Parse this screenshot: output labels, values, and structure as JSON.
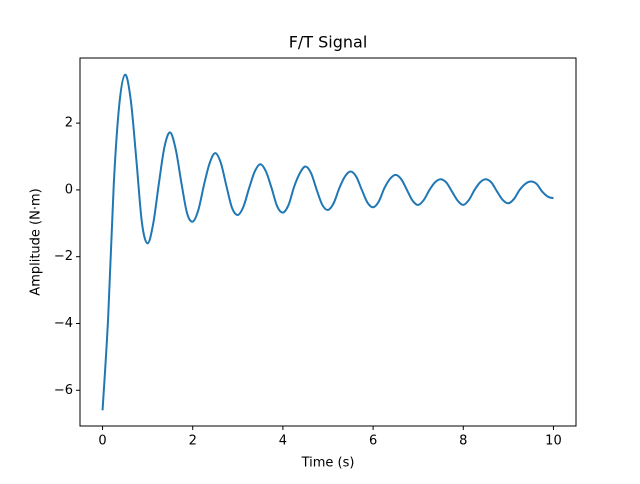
{
  "chart_data": {
    "type": "line",
    "title": "F/T Signal",
    "x_label": "Time (s)",
    "y_label": "Amplitude (N·m)",
    "x": [
      0,
      0.125,
      0.25,
      0.375,
      0.5,
      0.625,
      0.75,
      0.875,
      1,
      1.125,
      1.25,
      1.375,
      1.5,
      1.625,
      1.75,
      1.875,
      2,
      2.125,
      2.25,
      2.375,
      2.5,
      2.625,
      2.75,
      2.875,
      3,
      3.125,
      3.25,
      3.375,
      3.5,
      3.625,
      3.75,
      3.875,
      4,
      4.125,
      4.25,
      4.375,
      4.5,
      4.625,
      4.75,
      4.875,
      5,
      5.125,
      5.25,
      5.375,
      5.5,
      5.625,
      5.75,
      5.875,
      6,
      6.125,
      6.25,
      6.375,
      6.5,
      6.625,
      6.75,
      6.875,
      7,
      7.125,
      7.25,
      7.375,
      7.5,
      7.625,
      7.75,
      7.875,
      8,
      8.125,
      8.25,
      8.375,
      8.5,
      8.625,
      8.75,
      8.875,
      9,
      9.125,
      9.25,
      9.375,
      9.5,
      9.625,
      9.75,
      9.875,
      10
    ],
    "series": [
      {
        "color": "#1f77b4",
        "values": [
          -6.6,
          -3.8,
          0.2,
          2.6,
          3.45,
          2.7,
          0.9,
          -1.0,
          -1.6,
          -1.0,
          0.2,
          1.3,
          1.72,
          1.2,
          0.2,
          -0.7,
          -0.95,
          -0.6,
          0.15,
          0.8,
          1.1,
          0.8,
          0.1,
          -0.55,
          -0.75,
          -0.5,
          0.05,
          0.55,
          0.77,
          0.55,
          0.05,
          -0.5,
          -0.68,
          -0.45,
          0.1,
          0.5,
          0.7,
          0.5,
          0.0,
          -0.45,
          -0.6,
          -0.4,
          0.05,
          0.4,
          0.55,
          0.4,
          0.0,
          -0.38,
          -0.52,
          -0.35,
          0.05,
          0.33,
          0.45,
          0.32,
          0.0,
          -0.32,
          -0.45,
          -0.3,
          0.0,
          0.23,
          0.32,
          0.22,
          -0.05,
          -0.32,
          -0.45,
          -0.3,
          0.0,
          0.23,
          0.32,
          0.22,
          -0.05,
          -0.3,
          -0.4,
          -0.27,
          0.0,
          0.18,
          0.25,
          0.18,
          -0.05,
          -0.2,
          -0.25
        ]
      }
    ],
    "xlim": [
      -0.5,
      10.5
    ],
    "ylim": [
      -7.07,
      3.95
    ],
    "xticks": [
      0,
      2,
      4,
      6,
      8,
      10
    ],
    "yticks": [
      {
        "value": -6,
        "label": "−6"
      },
      {
        "value": -4,
        "label": "−4"
      },
      {
        "value": -2,
        "label": "−2"
      },
      0,
      2
    ],
    "grid": false
  }
}
